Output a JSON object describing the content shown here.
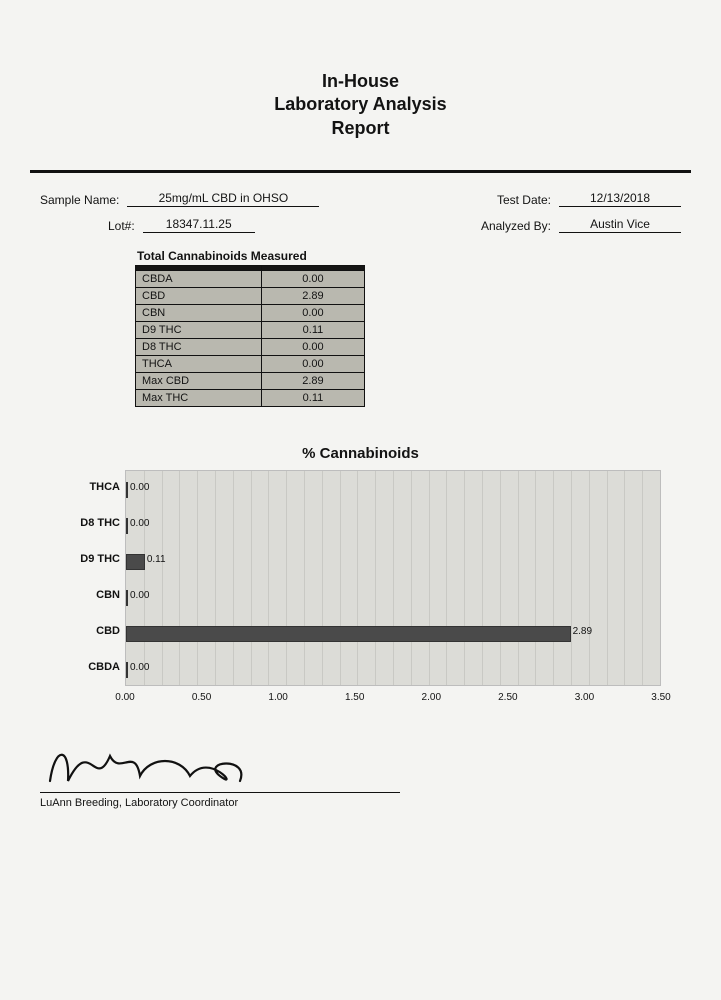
{
  "title": {
    "line1": "In-House",
    "line2": "Laboratory Analysis",
    "line3": "Report"
  },
  "info": {
    "sample_name_label": "Sample Name:",
    "sample_name_value": "25mg/mL CBD in OHSO",
    "lot_label": "Lot#:",
    "lot_value": "18347.11.25",
    "test_date_label": "Test Date:",
    "test_date_value": "12/13/2018",
    "analyzed_by_label": "Analyzed By:",
    "analyzed_by_value": "Austin Vice"
  },
  "cannabinoid_table": {
    "title": "Total Cannabinoids Measured",
    "rows": [
      {
        "name": "CBDA",
        "value": "0.00"
      },
      {
        "name": "CBD",
        "value": "2.89"
      },
      {
        "name": "CBN",
        "value": "0.00"
      },
      {
        "name": "D9 THC",
        "value": "0.11"
      },
      {
        "name": "D8 THC",
        "value": "0.00"
      },
      {
        "name": "THCA",
        "value": "0.00"
      },
      {
        "name": "Max CBD",
        "value": "2.89"
      },
      {
        "name": "Max THC",
        "value": "0.11"
      }
    ],
    "header_bg": "#151515",
    "cell_bg": "#b9b8af",
    "border_color": "#111111",
    "fontsize": 11
  },
  "chart": {
    "type": "bar-horizontal",
    "title": "% Cannabinoids",
    "title_fontsize": 15,
    "background_color": "#dcdcd7",
    "grid_color": "#c9c9c4",
    "bar_color": "#4a4a4a",
    "label_fontsize": 10,
    "ylabel_fontsize": 11,
    "xlim": [
      0,
      3.5
    ],
    "xtick_step": 0.5,
    "xticks": [
      "0.00",
      "0.50",
      "1.00",
      "1.50",
      "2.00",
      "2.50",
      "3.00",
      "3.50"
    ],
    "categories": [
      "THCA",
      "D8 THC",
      "D9 THC",
      "CBN",
      "CBD",
      "CBDA"
    ],
    "values": [
      0.0,
      0.0,
      0.11,
      0.0,
      2.89,
      0.0
    ],
    "value_labels": [
      "0.00",
      "0.00",
      "0.11",
      "0.00",
      "2.89",
      "0.00"
    ],
    "grid_lines": 30,
    "bar_row_height": 26
  },
  "signature": {
    "name_line": "LuAnn Breeding, Laboratory Coordinator"
  }
}
